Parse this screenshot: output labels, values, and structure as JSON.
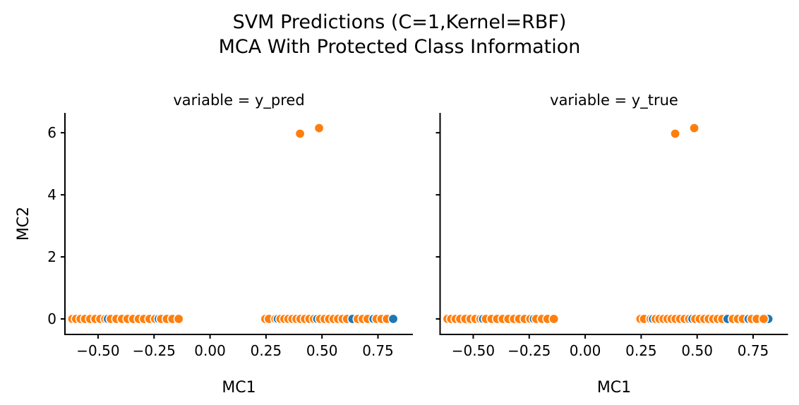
{
  "chart_data": {
    "type": "scatter",
    "suptitle_line1": "SVM Predictions (C=1,Kernel=RBF)",
    "suptitle_line2": "MCA With Protected Class Information",
    "xlabel": "MC1",
    "ylabel": "MC2",
    "xlim": [
      -0.648,
      0.906
    ],
    "ylim": [
      -0.5,
      6.64
    ],
    "xticks": [
      -0.5,
      -0.25,
      0.0,
      0.25,
      0.5,
      0.75
    ],
    "xtick_labels": [
      "−0.50",
      "−0.25",
      "0.00",
      "0.25",
      "0.50",
      "0.75"
    ],
    "yticks": [
      0,
      2,
      4,
      6
    ],
    "ytick_labels": [
      "0",
      "2",
      "4",
      "6"
    ],
    "grid": false,
    "legend": "none",
    "colors": {
      "o": "#ff7f0e",
      "b": "#1f77b4",
      "edge": "#ffffff",
      "axis": "#000000"
    },
    "marker": {
      "radius": 6.7,
      "edge_width": 1.6
    },
    "panels": [
      {
        "title": "variable = y_pred",
        "points": [
          [
            -0.615,
            0,
            "o"
          ],
          [
            -0.598,
            0,
            "o"
          ],
          [
            -0.578,
            0,
            "o"
          ],
          [
            -0.558,
            0,
            "o"
          ],
          [
            -0.535,
            0,
            "o"
          ],
          [
            -0.512,
            0,
            "o"
          ],
          [
            -0.49,
            0,
            "o"
          ],
          [
            -0.468,
            0,
            "o"
          ],
          [
            -0.456,
            0,
            "b"
          ],
          [
            -0.443,
            0,
            "o"
          ],
          [
            -0.418,
            0,
            "o"
          ],
          [
            -0.393,
            0,
            "o"
          ],
          [
            -0.368,
            0,
            "o"
          ],
          [
            -0.343,
            0,
            "o"
          ],
          [
            -0.318,
            0,
            "o"
          ],
          [
            -0.295,
            0,
            "o"
          ],
          [
            -0.27,
            0,
            "o"
          ],
          [
            -0.245,
            0,
            "o"
          ],
          [
            -0.229,
            0,
            "b"
          ],
          [
            -0.218,
            0,
            "o"
          ],
          [
            -0.193,
            0,
            "o"
          ],
          [
            -0.168,
            0,
            "o"
          ],
          [
            -0.14,
            0,
            "o"
          ],
          [
            0.247,
            0,
            "o"
          ],
          [
            0.263,
            0,
            "o"
          ],
          [
            0.292,
            0,
            "o"
          ],
          [
            0.303,
            0,
            "b"
          ],
          [
            0.315,
            0,
            "o"
          ],
          [
            0.332,
            0,
            "o"
          ],
          [
            0.35,
            0,
            "o"
          ],
          [
            0.368,
            0,
            "o"
          ],
          [
            0.386,
            0,
            "o"
          ],
          [
            0.404,
            0,
            "o"
          ],
          [
            0.424,
            0,
            "o"
          ],
          [
            0.444,
            0,
            "o"
          ],
          [
            0.464,
            0,
            "o"
          ],
          [
            0.479,
            0,
            "b"
          ],
          [
            0.492,
            0,
            "o"
          ],
          [
            0.512,
            0,
            "o"
          ],
          [
            0.532,
            0,
            "o"
          ],
          [
            0.552,
            0,
            "o"
          ],
          [
            0.572,
            0,
            "o"
          ],
          [
            0.592,
            0,
            "o"
          ],
          [
            0.612,
            0,
            "o"
          ],
          [
            0.636,
            0,
            "b"
          ],
          [
            0.66,
            0,
            "o"
          ],
          [
            0.682,
            0,
            "o"
          ],
          [
            0.704,
            0,
            "o"
          ],
          [
            0.73,
            0,
            "b"
          ],
          [
            0.744,
            0,
            "o"
          ],
          [
            0.766,
            0,
            "o"
          ],
          [
            0.79,
            0,
            "o"
          ],
          [
            0.402,
            5.97,
            "o"
          ],
          [
            0.487,
            6.15,
            "o"
          ],
          [
            0.818,
            0,
            "b"
          ]
        ]
      },
      {
        "title": "variable = y_true",
        "points": [
          [
            -0.615,
            0,
            "o"
          ],
          [
            -0.598,
            0,
            "o"
          ],
          [
            -0.578,
            0,
            "o"
          ],
          [
            -0.558,
            0,
            "o"
          ],
          [
            -0.535,
            0,
            "o"
          ],
          [
            -0.512,
            0,
            "o"
          ],
          [
            -0.49,
            0,
            "o"
          ],
          [
            -0.468,
            0,
            "o"
          ],
          [
            -0.456,
            0,
            "b"
          ],
          [
            -0.443,
            0,
            "o"
          ],
          [
            -0.418,
            0,
            "o"
          ],
          [
            -0.393,
            0,
            "o"
          ],
          [
            -0.368,
            0,
            "o"
          ],
          [
            -0.343,
            0,
            "o"
          ],
          [
            -0.318,
            0,
            "o"
          ],
          [
            -0.295,
            0,
            "o"
          ],
          [
            -0.27,
            0,
            "o"
          ],
          [
            -0.245,
            0,
            "o"
          ],
          [
            -0.229,
            0,
            "b"
          ],
          [
            -0.218,
            0,
            "o"
          ],
          [
            -0.193,
            0,
            "o"
          ],
          [
            -0.168,
            0,
            "o"
          ],
          [
            -0.14,
            0,
            "o"
          ],
          [
            0.247,
            0,
            "o"
          ],
          [
            0.263,
            0,
            "o"
          ],
          [
            0.292,
            0,
            "o"
          ],
          [
            0.303,
            0,
            "b"
          ],
          [
            0.315,
            0,
            "o"
          ],
          [
            0.332,
            0,
            "o"
          ],
          [
            0.35,
            0,
            "o"
          ],
          [
            0.368,
            0,
            "o"
          ],
          [
            0.386,
            0,
            "o"
          ],
          [
            0.404,
            0,
            "o"
          ],
          [
            0.424,
            0,
            "o"
          ],
          [
            0.444,
            0,
            "o"
          ],
          [
            0.464,
            0,
            "o"
          ],
          [
            0.479,
            0,
            "b"
          ],
          [
            0.492,
            0,
            "o"
          ],
          [
            0.512,
            0,
            "o"
          ],
          [
            0.532,
            0,
            "o"
          ],
          [
            0.552,
            0,
            "o"
          ],
          [
            0.572,
            0,
            "o"
          ],
          [
            0.592,
            0,
            "o"
          ],
          [
            0.612,
            0,
            "o"
          ],
          [
            0.636,
            0,
            "b"
          ],
          [
            0.66,
            0,
            "o"
          ],
          [
            0.682,
            0,
            "o"
          ],
          [
            0.704,
            0,
            "o"
          ],
          [
            0.73,
            0,
            "b"
          ],
          [
            0.744,
            0,
            "o"
          ],
          [
            0.766,
            0,
            "o"
          ],
          [
            0.402,
            5.97,
            "o"
          ],
          [
            0.487,
            6.15,
            "o"
          ],
          [
            0.818,
            0,
            "b"
          ],
          [
            0.797,
            0,
            "o"
          ]
        ]
      }
    ]
  }
}
